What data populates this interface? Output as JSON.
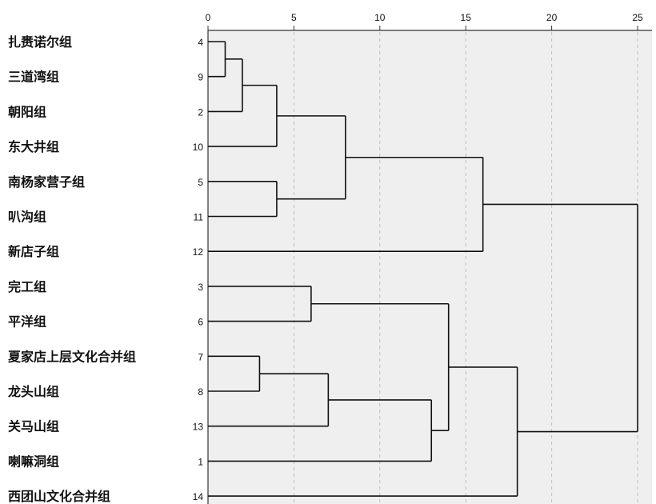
{
  "chart_data": {
    "type": "dendrogram",
    "title": "",
    "xlabel": "",
    "ylabel": "",
    "xlim": [
      0,
      25
    ],
    "xticks": [
      0,
      5,
      10,
      15,
      20,
      25
    ],
    "grid": "vertical dashed",
    "leaves": [
      {
        "label": "扎赉诺尔组",
        "id": "4"
      },
      {
        "label": "三道湾组",
        "id": "9"
      },
      {
        "label": "朝阳组",
        "id": "2"
      },
      {
        "label": "东大井组",
        "id": "10"
      },
      {
        "label": "南杨家营子组",
        "id": "5"
      },
      {
        "label": "叭沟组",
        "id": "11"
      },
      {
        "label": "新店子组",
        "id": "12"
      },
      {
        "label": "完工组",
        "id": "3"
      },
      {
        "label": "平洋组",
        "id": "6"
      },
      {
        "label": "夏家店上层文化合并组",
        "id": "7"
      },
      {
        "label": "龙头山组",
        "id": "8"
      },
      {
        "label": "关马山组",
        "id": "13"
      },
      {
        "label": "喇嘛洞组",
        "id": "1"
      },
      {
        "label": "西团山文化合并组",
        "id": "14"
      }
    ],
    "merges": [
      {
        "a": "L0",
        "b": "L1",
        "distance": 1
      },
      {
        "a": "M0",
        "b": "L2",
        "distance": 2
      },
      {
        "a": "M1",
        "b": "L3",
        "distance": 4
      },
      {
        "a": "L4",
        "b": "L5",
        "distance": 4
      },
      {
        "a": "M2",
        "b": "M3",
        "distance": 8
      },
      {
        "a": "M4",
        "b": "L6",
        "distance": 16
      },
      {
        "a": "L7",
        "b": "L8",
        "distance": 6
      },
      {
        "a": "L9",
        "b": "L10",
        "distance": 3
      },
      {
        "a": "M7",
        "b": "L11",
        "distance": 7
      },
      {
        "a": "M8",
        "b": "L12",
        "distance": 13
      },
      {
        "a": "M6",
        "b": "M9",
        "distance": 14
      },
      {
        "a": "M10",
        "b": "L13",
        "distance": 18
      },
      {
        "a": "M5",
        "b": "M11",
        "distance": 25
      }
    ]
  }
}
